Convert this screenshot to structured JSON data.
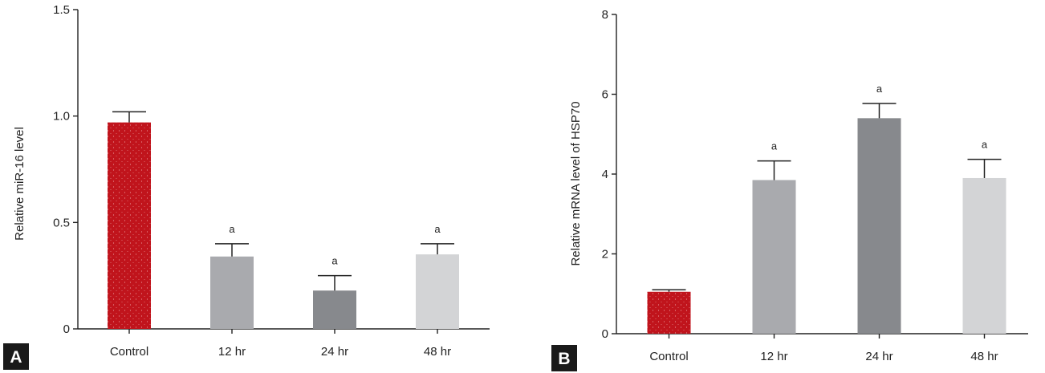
{
  "chart_data": [
    {
      "type": "bar",
      "panel_label": "A",
      "title": "",
      "xlabel": "",
      "ylabel": "Relative miR-16 level",
      "categories": [
        "Control",
        "12 hr",
        "24 hr",
        "48 hr"
      ],
      "values": [
        0.97,
        0.34,
        0.18,
        0.35
      ],
      "errors": [
        0.05,
        0.06,
        0.07,
        0.05
      ],
      "annotations": [
        "",
        "a",
        "a",
        "a"
      ],
      "colors": [
        "#c0141c",
        "#a9aaae",
        "#87898d",
        "#d3d4d6"
      ],
      "ylim": [
        0,
        1.5
      ],
      "yticks": [
        0,
        0.5,
        1.0,
        1.5
      ],
      "ytick_labels": [
        "0",
        "0.5",
        "1.0",
        "1.5"
      ],
      "grid": false
    },
    {
      "type": "bar",
      "panel_label": "B",
      "title": "",
      "xlabel": "",
      "ylabel": "Relative mRNA level of HSP70",
      "categories": [
        "Control",
        "12 hr",
        "24 hr",
        "48 hr"
      ],
      "values": [
        1.05,
        3.85,
        5.4,
        3.9
      ],
      "errors": [
        0.05,
        0.48,
        0.37,
        0.47
      ],
      "annotations": [
        "",
        "a",
        "a",
        "a"
      ],
      "colors": [
        "#c0141c",
        "#a9aaae",
        "#87898d",
        "#d3d4d6"
      ],
      "ylim": [
        0,
        8
      ],
      "yticks": [
        0,
        2,
        4,
        6,
        8
      ],
      "ytick_labels": [
        "0",
        "2",
        "4",
        "6",
        "8"
      ],
      "grid": false
    }
  ]
}
